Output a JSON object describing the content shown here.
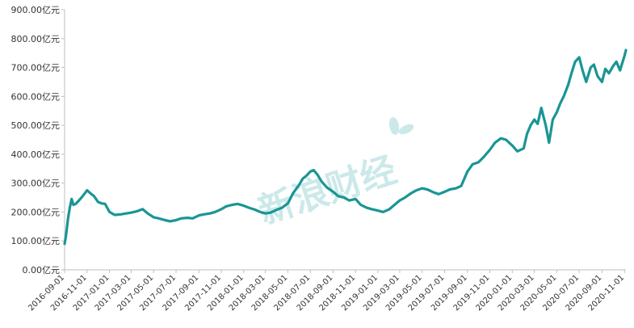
{
  "chart_data": {
    "type": "line",
    "title": "",
    "xlabel": "",
    "ylabel": "",
    "y_unit": "亿元",
    "ylim": [
      0,
      900
    ],
    "yticks": [
      0,
      100,
      200,
      300,
      400,
      500,
      600,
      700,
      800,
      900
    ],
    "ytick_labels": [
      "0.00亿元",
      "100.00亿元",
      "200.00亿元",
      "300.00亿元",
      "400.00亿元",
      "500.00亿元",
      "600.00亿元",
      "700.00亿元",
      "800.00亿元",
      "900.00亿元"
    ],
    "xlim": [
      "2016-09-01",
      "2020-11-05"
    ],
    "xtick_labels": [
      "2016-09-01",
      "2016-11-01",
      "2017-01-01",
      "2017-03-01",
      "2017-05-01",
      "2017-07-01",
      "2017-09-01",
      "2017-11-01",
      "2018-01-01",
      "2018-03-01",
      "2018-05-01",
      "2018-07-01",
      "2018-09-01",
      "2018-11-01",
      "2019-01-01",
      "2019-03-01",
      "2019-05-01",
      "2019-07-01",
      "2019-09-01",
      "2019-11-01",
      "2020-01-01",
      "2020-03-01",
      "2020-05-01",
      "2020-07-01",
      "2020-09-01",
      "2020-11-01"
    ],
    "grid": false,
    "legend": "none",
    "colors": {
      "series": "#1a9595",
      "axis": "#bfbfbf",
      "watermark": "#8fcfcf"
    },
    "series": [
      {
        "x": [
          "2016-09-01",
          "2016-09-05",
          "2016-09-10",
          "2016-09-15",
          "2016-09-20",
          "2016-09-25",
          "2016-10-01",
          "2016-10-10",
          "2016-10-20",
          "2016-11-01",
          "2016-11-10",
          "2016-11-20",
          "2016-12-01",
          "2016-12-10",
          "2016-12-20",
          "2017-01-01",
          "2017-01-15",
          "2017-02-01",
          "2017-02-15",
          "2017-03-01",
          "2017-03-15",
          "2017-04-01",
          "2017-04-15",
          "2017-05-01",
          "2017-05-15",
          "2017-06-01",
          "2017-06-15",
          "2017-07-01",
          "2017-07-15",
          "2017-08-01",
          "2017-08-15",
          "2017-09-01",
          "2017-09-15",
          "2017-10-01",
          "2017-10-15",
          "2017-11-01",
          "2017-11-15",
          "2017-12-01",
          "2017-12-15",
          "2018-01-01",
          "2018-01-15",
          "2018-02-01",
          "2018-02-15",
          "2018-03-01",
          "2018-03-15",
          "2018-04-01",
          "2018-04-15",
          "2018-05-01",
          "2018-05-15",
          "2018-06-01",
          "2018-06-10",
          "2018-06-20",
          "2018-07-01",
          "2018-07-10",
          "2018-07-20",
          "2018-08-01",
          "2018-08-15",
          "2018-09-01",
          "2018-09-15",
          "2018-10-01",
          "2018-10-15",
          "2018-11-01",
          "2018-11-15",
          "2018-12-01",
          "2018-12-15",
          "2019-01-01",
          "2019-01-15",
          "2019-02-01",
          "2019-02-15",
          "2019-03-01",
          "2019-03-15",
          "2019-04-01",
          "2019-04-15",
          "2019-05-01",
          "2019-05-15",
          "2019-06-01",
          "2019-06-15",
          "2019-07-01",
          "2019-07-15",
          "2019-08-01",
          "2019-08-15",
          "2019-09-01",
          "2019-09-15",
          "2019-10-01",
          "2019-10-15",
          "2019-11-01",
          "2019-11-15",
          "2019-12-01",
          "2019-12-15",
          "2020-01-01",
          "2020-01-15",
          "2020-02-01",
          "2020-02-10",
          "2020-02-20",
          "2020-03-01",
          "2020-03-10",
          "2020-03-20",
          "2020-04-01",
          "2020-04-10",
          "2020-04-20",
          "2020-05-01",
          "2020-05-10",
          "2020-05-20",
          "2020-06-01",
          "2020-06-10",
          "2020-06-20",
          "2020-07-01",
          "2020-07-10",
          "2020-07-20",
          "2020-08-01",
          "2020-08-10",
          "2020-08-20",
          "2020-09-01",
          "2020-09-10",
          "2020-09-20",
          "2020-10-01",
          "2020-10-10",
          "2020-10-20",
          "2020-11-01",
          "2020-11-05"
        ],
        "y": [
          90,
          120,
          175,
          215,
          245,
          225,
          228,
          240,
          255,
          275,
          265,
          255,
          235,
          230,
          228,
          200,
          190,
          192,
          195,
          198,
          202,
          210,
          195,
          182,
          178,
          172,
          168,
          172,
          178,
          180,
          178,
          188,
          192,
          195,
          200,
          210,
          220,
          225,
          228,
          222,
          215,
          208,
          200,
          195,
          198,
          208,
          215,
          230,
          265,
          295,
          315,
          325,
          340,
          345,
          330,
          305,
          285,
          270,
          255,
          250,
          240,
          245,
          225,
          215,
          210,
          205,
          200,
          210,
          225,
          240,
          250,
          265,
          275,
          282,
          278,
          268,
          262,
          270,
          278,
          282,
          290,
          340,
          365,
          372,
          390,
          415,
          440,
          455,
          450,
          430,
          410,
          420,
          470,
          500,
          520,
          505,
          560,
          500,
          440,
          520,
          545,
          575,
          600,
          640,
          680,
          720,
          735,
          690,
          650,
          700,
          710,
          670,
          650,
          695,
          680,
          705,
          720,
          690,
          740,
          760
        ]
      }
    ],
    "watermark_text": "新浪财经"
  }
}
